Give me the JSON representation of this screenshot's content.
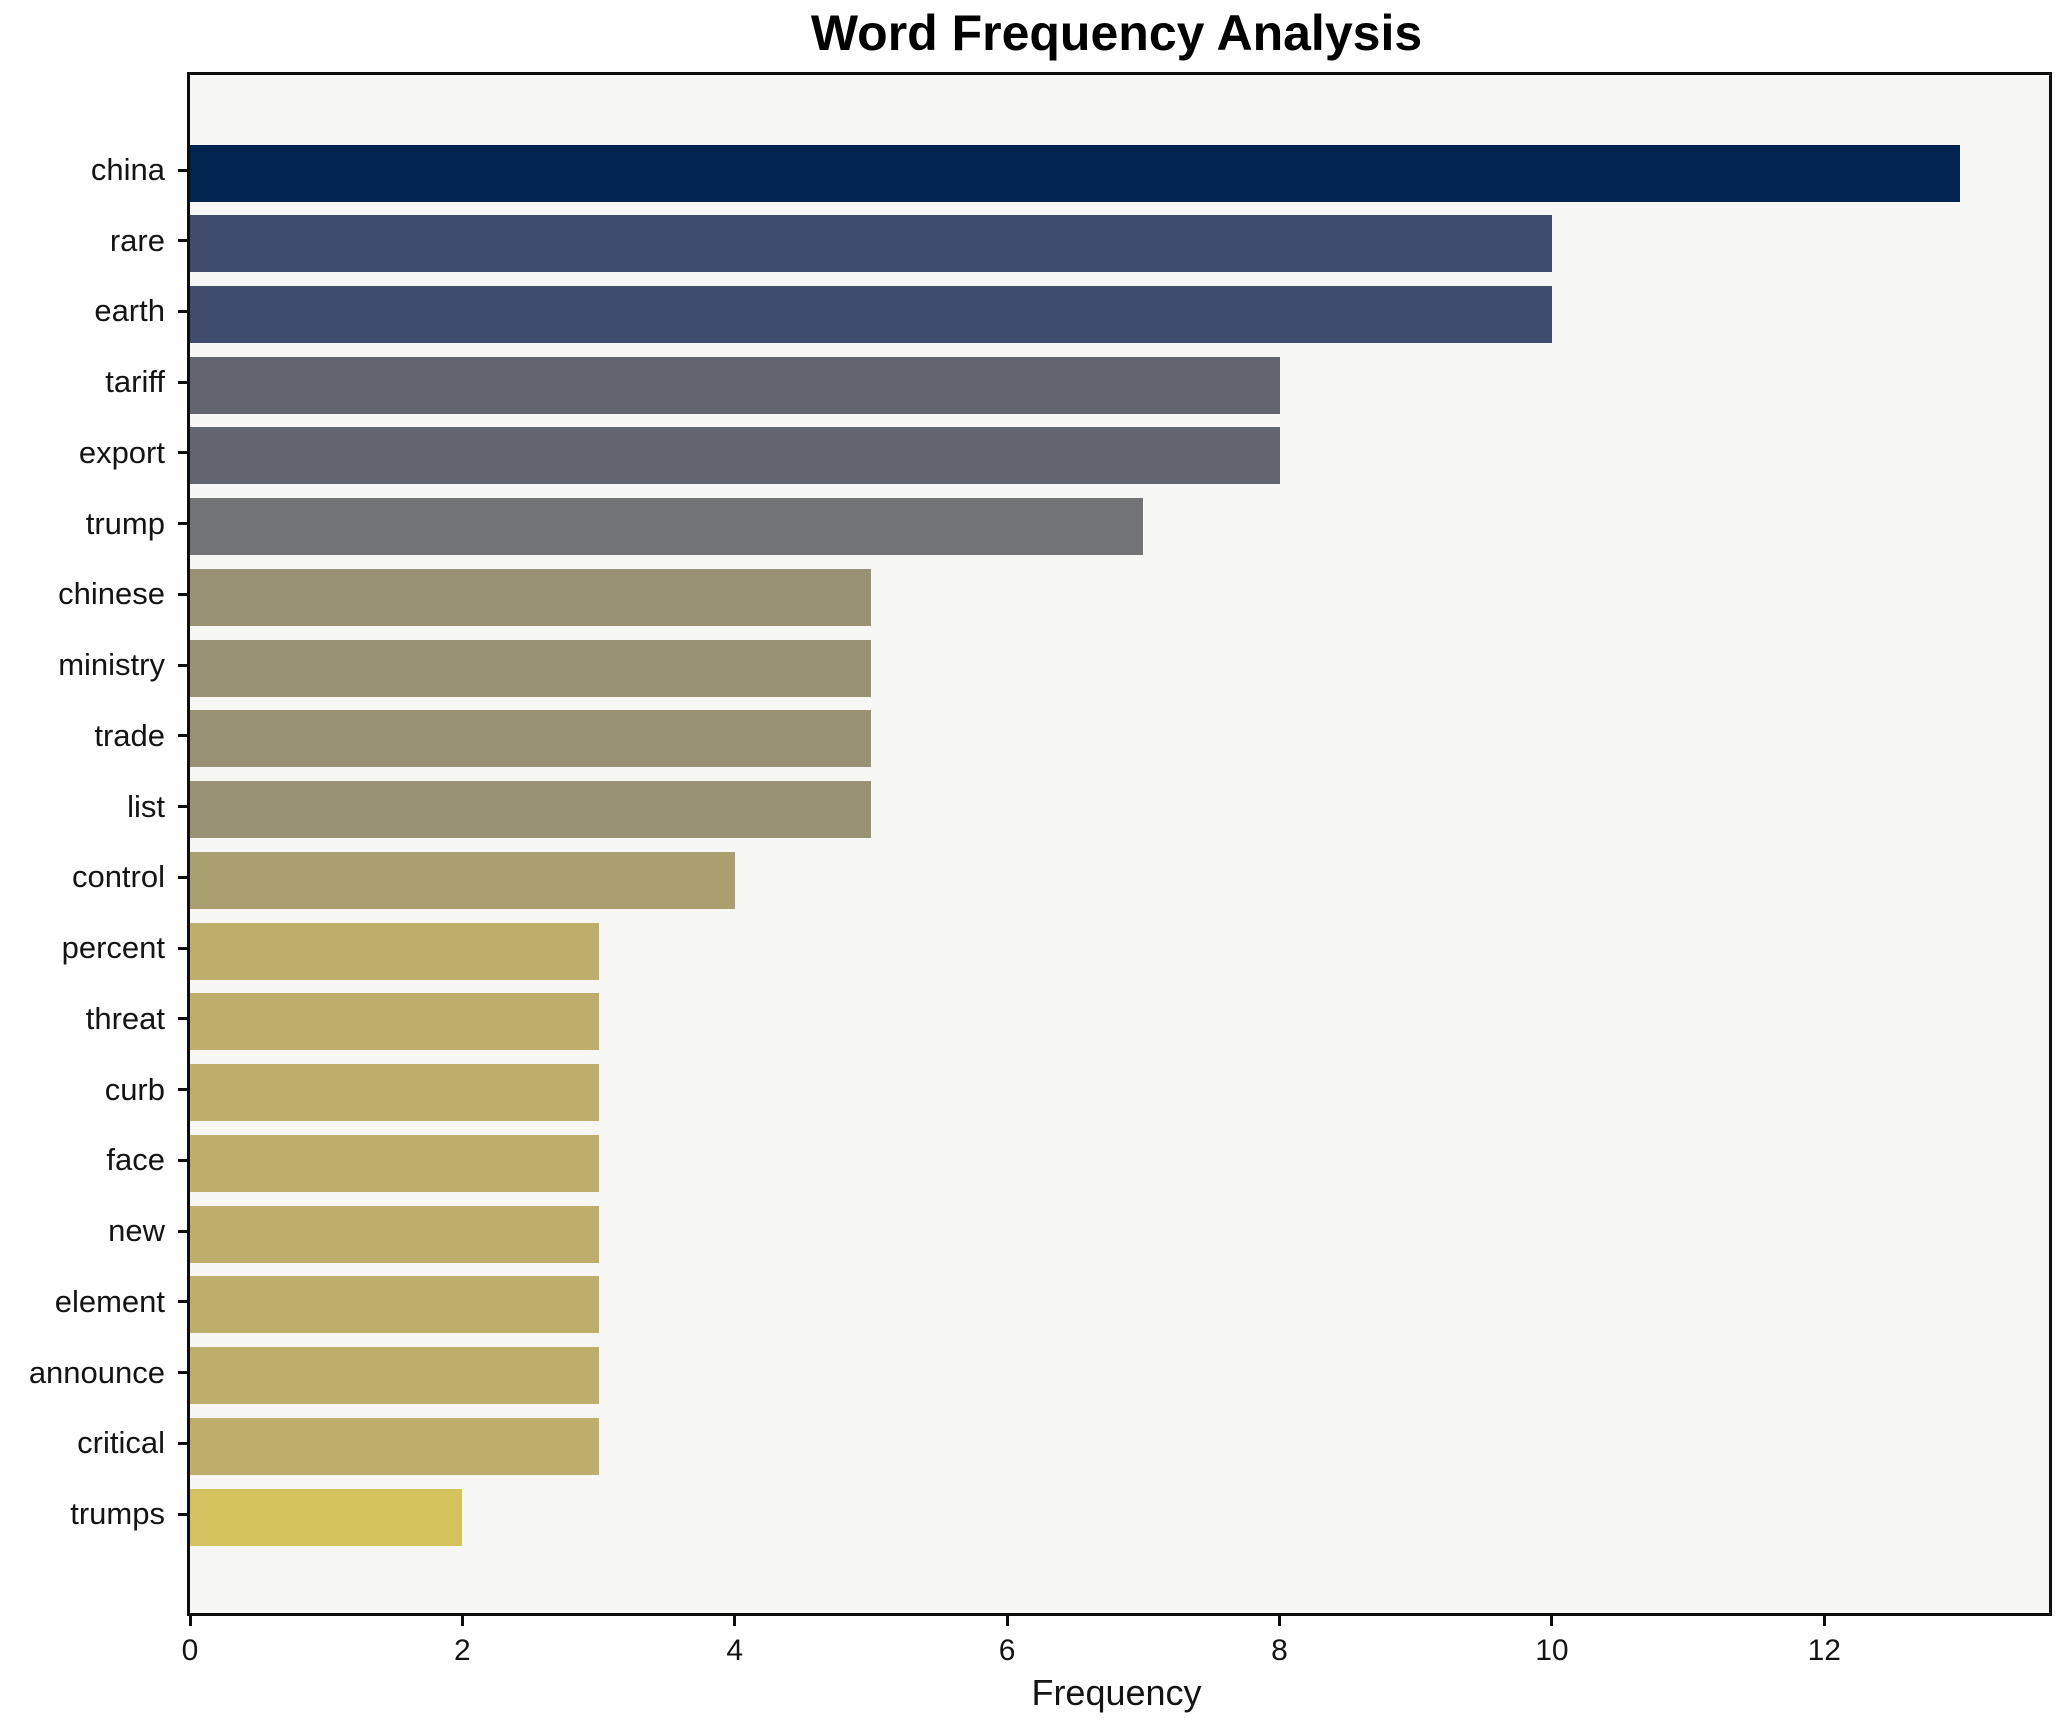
{
  "chart_data": {
    "type": "bar",
    "orientation": "horizontal",
    "title": "Word Frequency Analysis",
    "xlabel": "Frequency",
    "ylabel": "",
    "categories": [
      "china",
      "rare",
      "earth",
      "tariff",
      "export",
      "trump",
      "chinese",
      "ministry",
      "trade",
      "list",
      "control",
      "percent",
      "threat",
      "curb",
      "face",
      "new",
      "element",
      "announce",
      "critical",
      "trumps"
    ],
    "values": [
      13,
      10,
      10,
      8,
      8,
      7,
      5,
      5,
      5,
      5,
      4,
      3,
      3,
      3,
      3,
      3,
      3,
      3,
      3,
      2
    ],
    "bar_colors": [
      "#002350",
      "#404c6e",
      "#404c6e",
      "#626470",
      "#626470",
      "#727374",
      "#989174",
      "#989174",
      "#989174",
      "#989174",
      "#aaa06f",
      "#bfae6b",
      "#bfae6b",
      "#bfae6b",
      "#bfae6b",
      "#bfae6b",
      "#bfae6b",
      "#bfae6b",
      "#bfae6b",
      "#d4c25e"
    ],
    "x_ticks": [
      0,
      2,
      4,
      6,
      8,
      10,
      12
    ],
    "xlim": [
      0,
      13.65
    ],
    "grid": false,
    "legend": false,
    "plot_background": "#f7f7f5",
    "figure_background": "#ffffff",
    "spine_color": "#0d0d0d",
    "text_color": "#141414"
  }
}
